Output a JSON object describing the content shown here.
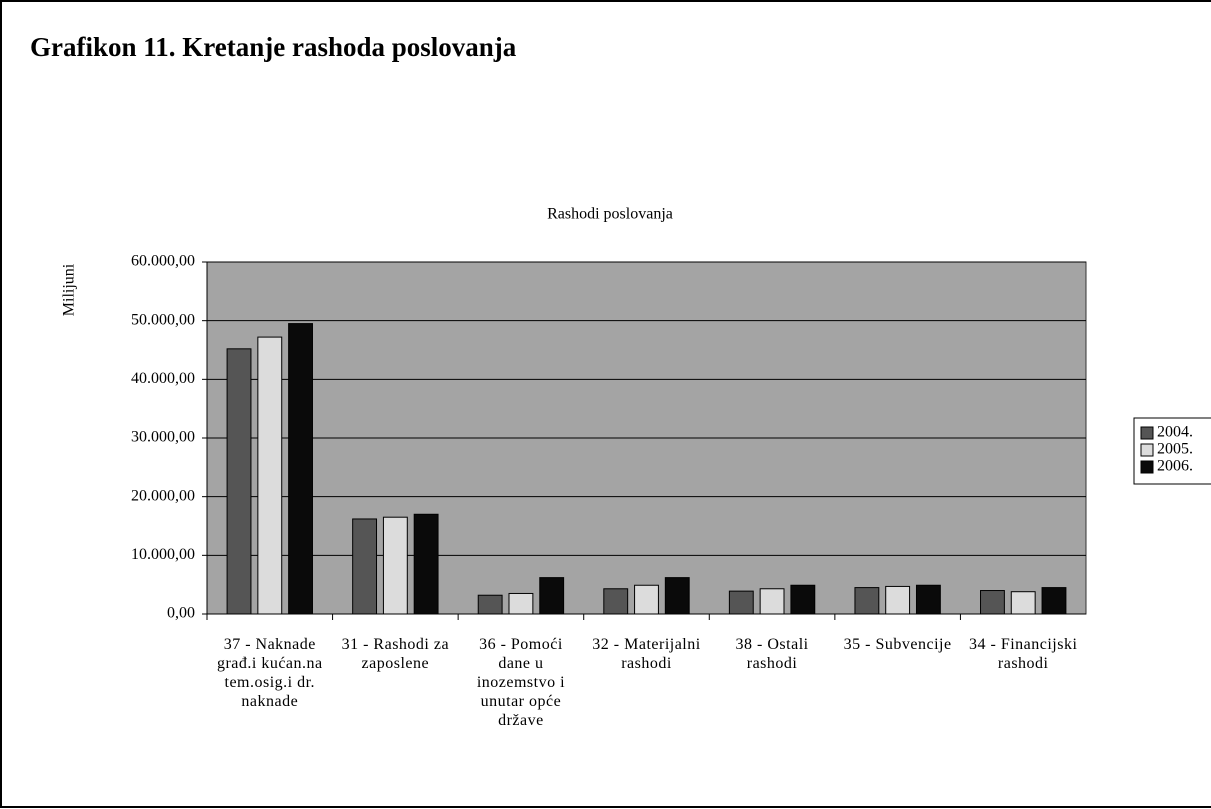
{
  "heading": "Grafikon 11. Kretanje rashoda poslovanja",
  "chart_data": {
    "type": "bar",
    "title": "Rashodi poslovanja",
    "y_label": "Milijuni",
    "categories": [
      "37 - Naknade građ.i kućan.na tem.osig.i dr. naknade",
      "31 - Rashodi za zaposlene",
      "36 - Pomoći dane u inozemstvo i unutar opće države",
      "32 - Materijalni rashodi",
      "38 - Ostali rashodi",
      "35 - Subvencije",
      "34 - Financijski rashodi"
    ],
    "series": [
      {
        "name": "2004.",
        "color": "#555555",
        "values": [
          45200,
          16200,
          3200,
          4300,
          3900,
          4500,
          4000
        ]
      },
      {
        "name": "2005.",
        "color": "#dcdcdc",
        "values": [
          47200,
          16500,
          3500,
          4900,
          4300,
          4700,
          3800
        ]
      },
      {
        "name": "2006.",
        "color": "#0a0a0a",
        "values": [
          49500,
          17000,
          6200,
          6200,
          4900,
          4900,
          4500
        ]
      }
    ],
    "ylim": [
      0,
      60000
    ],
    "yticks": [
      {
        "value": 0,
        "label": "0,00"
      },
      {
        "value": 10000,
        "label": "10.000,00"
      },
      {
        "value": 20000,
        "label": "20.000,00"
      },
      {
        "value": 30000,
        "label": "30.000,00"
      },
      {
        "value": 40000,
        "label": "40.000,00"
      },
      {
        "value": 50000,
        "label": "50.000,00"
      },
      {
        "value": 60000,
        "label": "60.000,00"
      }
    ],
    "grid": true,
    "legend": "right",
    "plot_color": "#a4a4a4"
  }
}
